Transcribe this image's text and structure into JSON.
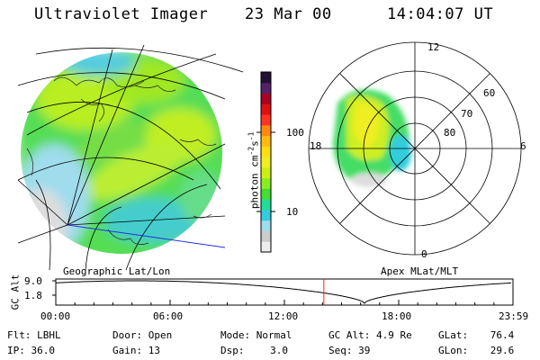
{
  "header": {
    "instrument": "Ultraviolet Imager",
    "date": "23 Mar 00",
    "time": "14:04:07 UT"
  },
  "colorbar": {
    "label": "photon cm",
    "sup1": "-2",
    "unit2": "s",
    "sup2": "-1",
    "ticks": [
      "100",
      "10"
    ],
    "colors": [
      "#eeeeee",
      "#cccccc",
      "#9fdcec",
      "#33ccdd",
      "#22dd99",
      "#44dd33",
      "#88ee22",
      "#ccee11",
      "#eeee22",
      "#ffdd11",
      "#ffbb11",
      "#ff8811",
      "#ff3322",
      "#dd1111",
      "#aa0022",
      "#552266",
      "#221133"
    ]
  },
  "maps": {
    "left_label": "Geographic Lat/Lon",
    "right_label": "Apex MLat/MLT",
    "polar_mlt": [
      "12",
      "18",
      "6",
      "0"
    ],
    "polar_lat": [
      "60",
      "70",
      "80"
    ]
  },
  "altitude_plot": {
    "ylabel": "GC Alt",
    "yticks": [
      "9.0",
      "1.8"
    ],
    "xticks": [
      "00:00",
      "06:00",
      "12:00",
      "18:00",
      "23:59"
    ],
    "current_marker": 14.07
  },
  "info": {
    "row1": [
      {
        "label": "Flt:",
        "value": "LBHL"
      },
      {
        "label": "Door:",
        "value": "Open"
      },
      {
        "label": "Mode:",
        "value": "Normal"
      },
      {
        "label": "GC Alt:",
        "value": "4.9 Re"
      },
      {
        "label": "GLat:",
        "value": "76.4"
      }
    ],
    "row2": [
      {
        "label": "IP:",
        "value": "36.0"
      },
      {
        "label": "Gain:",
        "value": "13"
      },
      {
        "label": "Dsp:",
        "value": "3.0"
      },
      {
        "label": "Seq:",
        "value": "39"
      },
      {
        "label": "GLon:",
        "value": "29.6"
      }
    ]
  }
}
